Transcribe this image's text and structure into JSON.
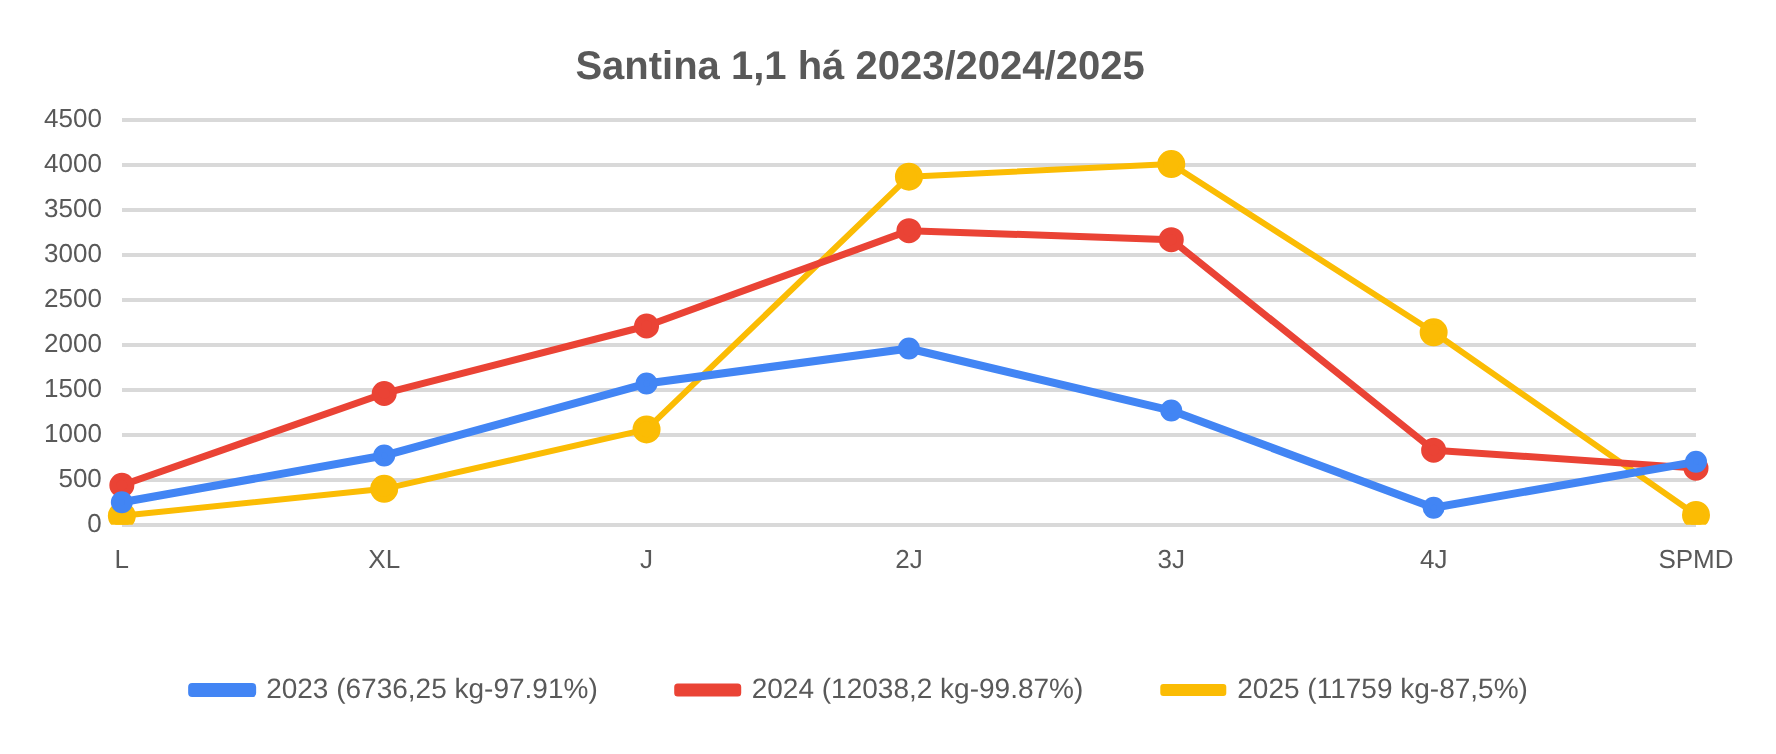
{
  "chart_data": {
    "type": "line",
    "title": "Santina 1,1 há 2023/2024/2025",
    "categories": [
      "L",
      "XL",
      "J",
      "2J",
      "3J",
      "4J",
      "SPMD"
    ],
    "series": [
      {
        "name": "2023 (6736,25 kg-97.91%)",
        "color": "#4285f4",
        "values": [
          250,
          770,
          1570,
          1960,
          1270,
          190,
          700
        ]
      },
      {
        "name": "2024 (12038,2 kg-99.87%)",
        "color": "#ea4335",
        "values": [
          440,
          1460,
          2210,
          3270,
          3170,
          830,
          630
        ]
      },
      {
        "name": "2025 (11759 kg-87,5%)",
        "color": "#fbbc04",
        "values": [
          100,
          400,
          1060,
          3870,
          4010,
          2140,
          110
        ]
      }
    ],
    "ylim": [
      0,
      4500
    ],
    "yticks": [
      0,
      500,
      1000,
      1500,
      2000,
      2500,
      3000,
      3500,
      4000,
      4500
    ],
    "grid": "y",
    "legend": "bottom",
    "marker": "circle",
    "line_style": "solid"
  }
}
